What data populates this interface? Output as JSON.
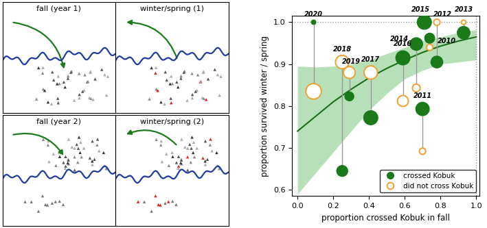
{
  "diagram": {
    "panels": [
      {
        "title": "fall (year 1)"
      },
      {
        "title": "winter/spring (1)"
      },
      {
        "title": "fall (year 2)"
      },
      {
        "title": "winter/spring (2)"
      }
    ]
  },
  "chart_data": {
    "type": "scatter",
    "xlabel": "proportion crossed Kobuk in fall",
    "ylabel": "proportion survived winter / spring",
    "xlim": [
      -0.03,
      1.02
    ],
    "ylim": [
      0.585,
      1.015
    ],
    "xticks": [
      0.0,
      0.2,
      0.4,
      0.6,
      0.8,
      1.0
    ],
    "yticks": [
      0.6,
      0.7,
      0.8,
      0.9,
      1.0
    ],
    "legend": "lower right",
    "point_labels": [
      "2020",
      "2018",
      "2019",
      "2017",
      "2016",
      "2014",
      "2011",
      "2015",
      "2010",
      "2012",
      "2013"
    ],
    "x": [
      0.09,
      0.25,
      0.29,
      0.41,
      0.59,
      0.665,
      0.7,
      0.71,
      0.74,
      0.78,
      0.93
    ],
    "series": [
      {
        "name": "crossed Kobuk",
        "color": "#1a7a1a",
        "marker": "filled",
        "values": [
          1.0,
          0.645,
          0.823,
          0.772,
          0.915,
          0.948,
          0.793,
          1.0,
          0.962,
          0.905,
          0.975
        ],
        "sizes": [
          1,
          6,
          4,
          10,
          10,
          8,
          9,
          10,
          5,
          7,
          8
        ]
      },
      {
        "name": "did not cross Kobuk",
        "color": "#f0a030",
        "marker": "open",
        "values": [
          0.835,
          0.905,
          0.88,
          0.88,
          0.812,
          0.843,
          0.692,
          1.0,
          0.94,
          1.0,
          1.0
        ],
        "sizes": [
          12,
          9,
          7,
          9,
          6,
          3,
          2,
          2,
          2,
          2,
          1
        ]
      }
    ],
    "fit": {
      "color": "#1a6e1a",
      "band_color": "#a6d9a6",
      "x": [
        0.0,
        0.1,
        0.2,
        0.3,
        0.4,
        0.5,
        0.6,
        0.7,
        0.8,
        0.9,
        1.0
      ],
      "values": [
        0.74,
        0.775,
        0.81,
        0.84,
        0.867,
        0.89,
        0.91,
        0.928,
        0.943,
        0.955,
        0.965
      ],
      "lower": [
        0.59,
        0.64,
        0.69,
        0.74,
        0.79,
        0.83,
        0.865,
        0.885,
        0.9,
        0.905,
        0.91
      ],
      "upper": [
        0.895,
        0.893,
        0.895,
        0.9,
        0.91,
        0.925,
        0.94,
        0.955,
        0.965,
        0.975,
        0.982
      ]
    },
    "reference_lines": {
      "x": 1.0,
      "y": 1.0
    }
  }
}
